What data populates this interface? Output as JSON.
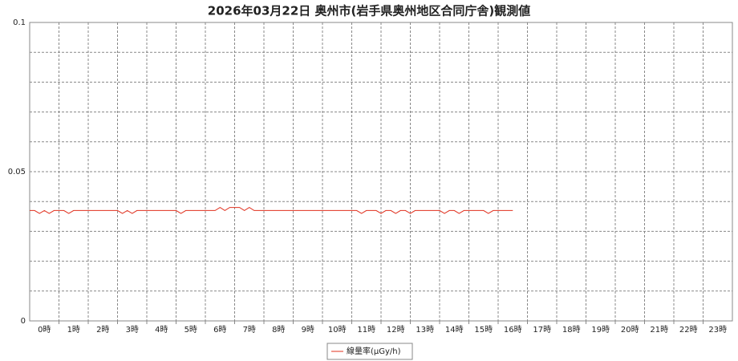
{
  "chart_data": {
    "type": "line",
    "title": "2026年03月22日 奥州市(岩手県奥州地区合同庁舎)観測値",
    "categories": [
      "0時",
      "1時",
      "2時",
      "3時",
      "4時",
      "5時",
      "6時",
      "7時",
      "8時",
      "9時",
      "10時",
      "11時",
      "12時",
      "13時",
      "14時",
      "15時",
      "16時",
      "17時",
      "18時",
      "19時",
      "20時",
      "21時",
      "22時",
      "23時"
    ],
    "x": [
      0,
      10,
      20,
      30,
      40,
      50,
      60,
      70,
      80,
      90,
      100,
      110,
      120,
      130,
      140,
      150,
      160,
      170,
      180,
      190,
      200,
      210,
      220,
      230,
      240,
      250,
      260,
      270,
      280,
      290,
      300,
      310,
      320,
      330,
      340,
      350,
      360,
      370,
      380,
      390,
      400,
      410,
      420,
      430,
      440,
      450,
      460,
      470,
      480,
      490,
      500,
      510,
      520,
      530,
      540,
      550,
      560,
      570,
      580,
      590,
      600,
      610,
      620,
      630,
      640,
      650,
      660,
      670,
      680,
      690,
      700,
      710,
      720,
      730,
      740,
      750,
      760,
      770,
      780,
      790,
      800,
      810,
      820,
      830,
      840,
      850,
      860,
      870,
      880,
      890,
      900,
      910,
      920,
      930,
      940,
      950,
      960,
      970,
      980,
      990
    ],
    "series": [
      {
        "name": "線量率(μGy/h)",
        "color": "#e0301e",
        "values": [
          0.037,
          0.037,
          0.036,
          0.037,
          0.036,
          0.037,
          0.037,
          0.037,
          0.036,
          0.037,
          0.037,
          0.037,
          0.037,
          0.037,
          0.037,
          0.037,
          0.037,
          0.037,
          0.037,
          0.036,
          0.037,
          0.036,
          0.037,
          0.037,
          0.037,
          0.037,
          0.037,
          0.037,
          0.037,
          0.037,
          0.037,
          0.036,
          0.037,
          0.037,
          0.037,
          0.037,
          0.037,
          0.037,
          0.037,
          0.038,
          0.037,
          0.038,
          0.038,
          0.038,
          0.037,
          0.038,
          0.037,
          0.037,
          0.037,
          0.037,
          0.037,
          0.037,
          0.037,
          0.037,
          0.037,
          0.037,
          0.037,
          0.037,
          0.037,
          0.037,
          0.037,
          0.037,
          0.037,
          0.037,
          0.037,
          0.037,
          0.037,
          0.037,
          0.036,
          0.037,
          0.037,
          0.037,
          0.036,
          0.037,
          0.037,
          0.036,
          0.037,
          0.037,
          0.036,
          0.037,
          0.037,
          0.037,
          0.037,
          0.037,
          0.037,
          0.036,
          0.037,
          0.037,
          0.036,
          0.037,
          0.037,
          0.037,
          0.037,
          0.037,
          0.036,
          0.037,
          0.037,
          0.037,
          0.037,
          0.037
        ]
      }
    ],
    "xlim": [
      0,
      1440
    ],
    "xticks": [
      60,
      120,
      180,
      240,
      300,
      360,
      420,
      480,
      540,
      600,
      660,
      720,
      780,
      840,
      900,
      960,
      1020,
      1080,
      1140,
      1200,
      1260,
      1320,
      1380
    ],
    "ylim": [
      0,
      0.1
    ],
    "yticks": [
      0,
      0.05,
      0.1
    ],
    "minor_gridlines": [
      0.01,
      0.02,
      0.03,
      0.04,
      0.06,
      0.07,
      0.08,
      0.09
    ],
    "grid": true
  }
}
